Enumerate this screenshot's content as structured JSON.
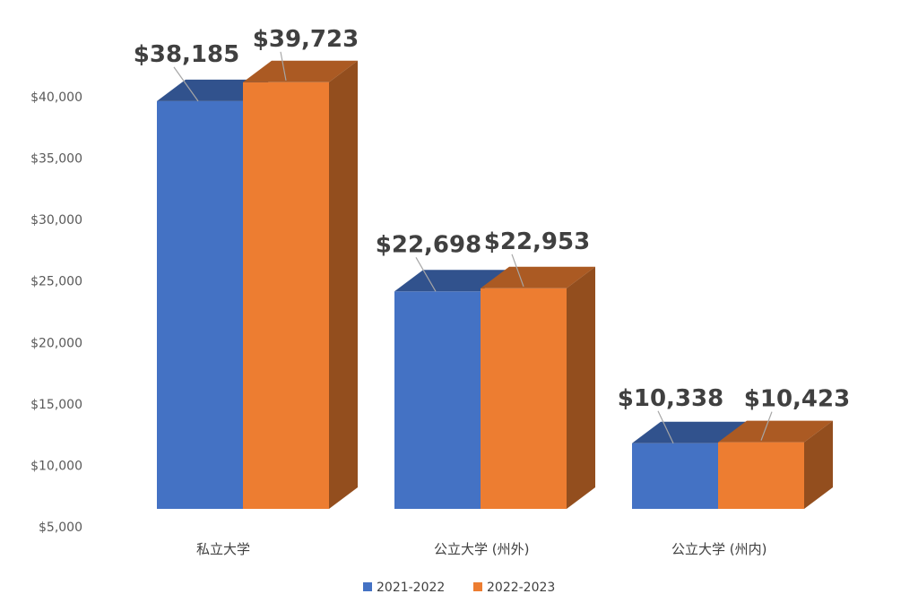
{
  "chart_data": {
    "type": "bar",
    "style": "3d-clustered-column",
    "categories": [
      "私立大学",
      "公立大学 (州外)",
      "公立大学 (州内)"
    ],
    "series": [
      {
        "name": "2021-2022",
        "color": "#4472C4",
        "values": [
          38185,
          22698,
          10338
        ],
        "labels": [
          "$38,185",
          "$22,698",
          "$10,338"
        ]
      },
      {
        "name": "2022-2023",
        "color": "#ED7D31",
        "values": [
          39723,
          22953,
          10423
        ],
        "labels": [
          "$39,723",
          "$22,953",
          "$10,423"
        ]
      }
    ],
    "y_ticks": [
      "$5,000",
      "$10,000",
      "$15,000",
      "$20,000",
      "$25,000",
      "$30,000",
      "$35,000",
      "$40,000"
    ],
    "ylim": [
      5000,
      40000
    ],
    "grid": false,
    "legend": "bottom",
    "title": "",
    "xlabel": "",
    "ylabel": ""
  }
}
